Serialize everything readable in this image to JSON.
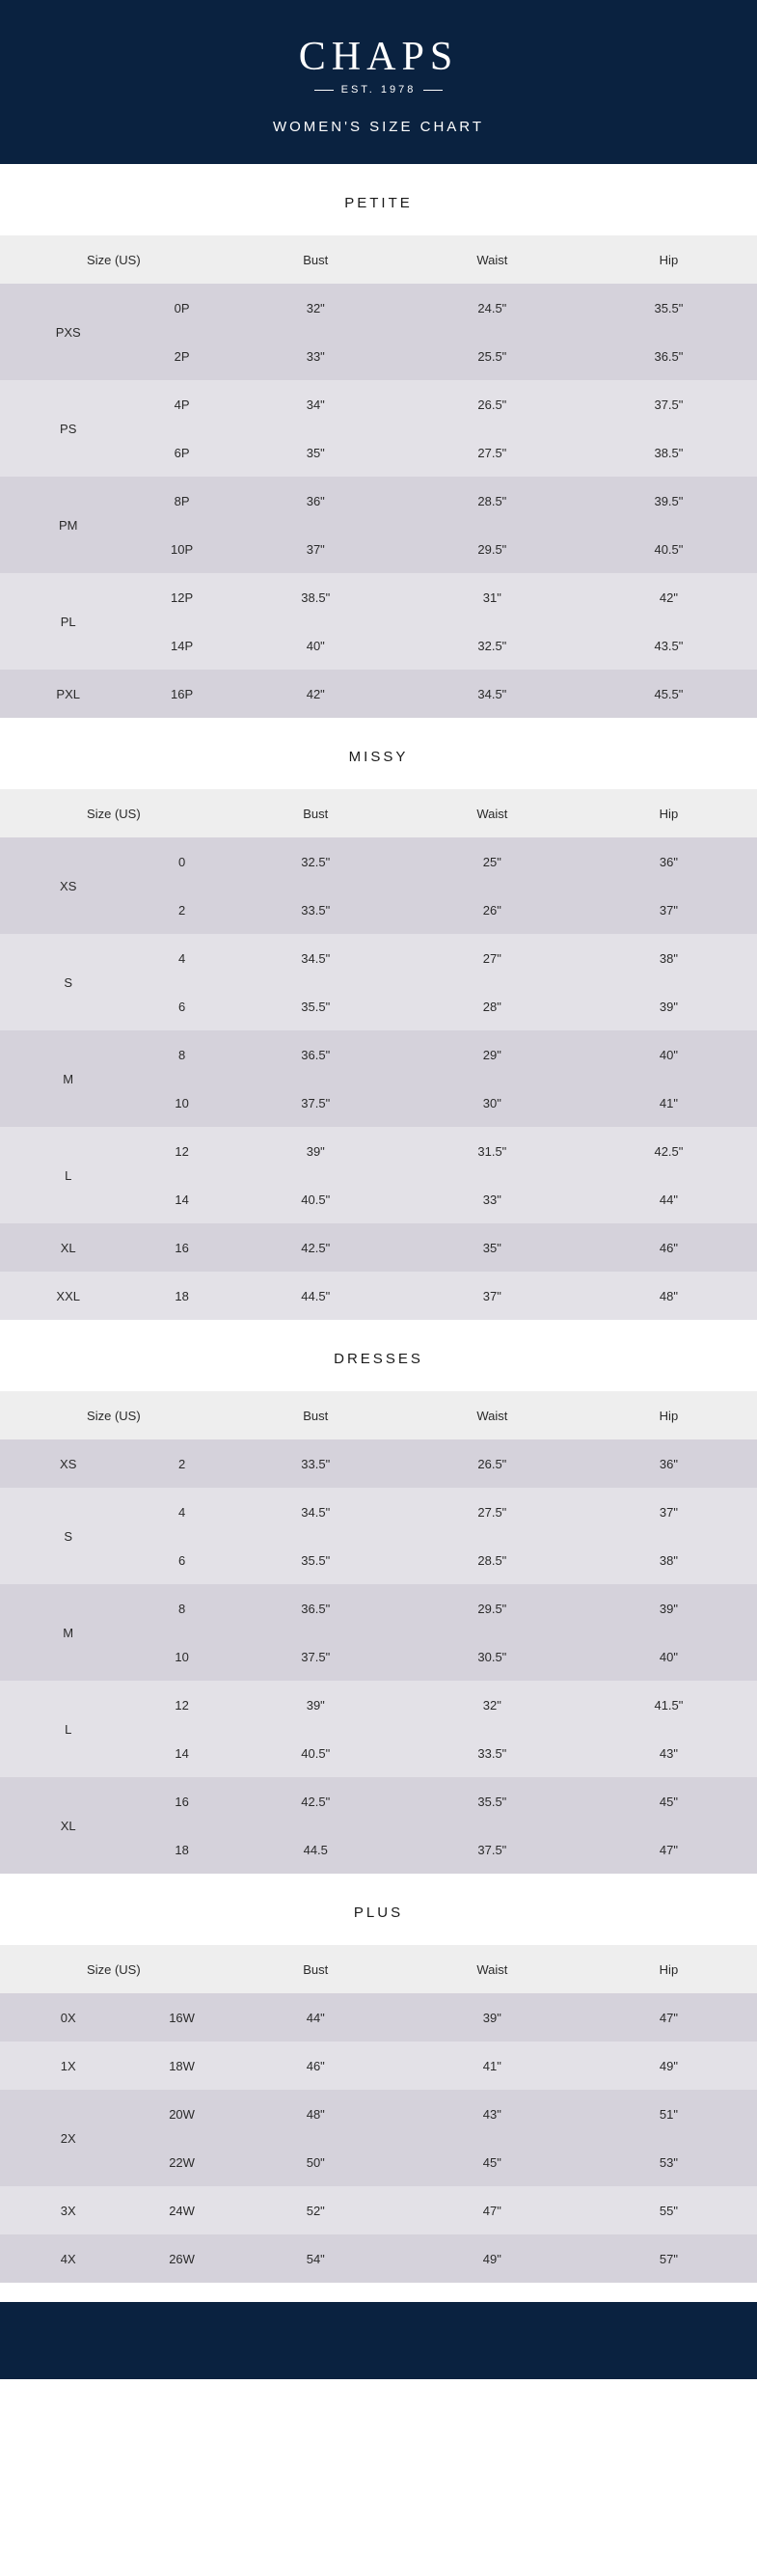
{
  "brand": {
    "name": "CHAPS",
    "est": "EST. 1978",
    "subtitle": "WOMEN'S SIZE CHART"
  },
  "columns": {
    "size": "Size (US)",
    "bust": "Bust",
    "waist": "Waist",
    "hip": "Hip"
  },
  "sections": [
    {
      "title": "PETITE",
      "groups": [
        {
          "label": "PXS",
          "rows": [
            {
              "sub": "0P",
              "bust": "32\"",
              "waist": "24.5\"",
              "hip": "35.5\""
            },
            {
              "sub": "2P",
              "bust": "33\"",
              "waist": "25.5\"",
              "hip": "36.5\""
            }
          ]
        },
        {
          "label": "PS",
          "rows": [
            {
              "sub": "4P",
              "bust": "34\"",
              "waist": "26.5\"",
              "hip": "37.5\""
            },
            {
              "sub": "6P",
              "bust": "35\"",
              "waist": "27.5\"",
              "hip": "38.5\""
            }
          ]
        },
        {
          "label": "PM",
          "rows": [
            {
              "sub": "8P",
              "bust": "36\"",
              "waist": "28.5\"",
              "hip": "39.5\""
            },
            {
              "sub": "10P",
              "bust": "37\"",
              "waist": "29.5\"",
              "hip": "40.5\""
            }
          ]
        },
        {
          "label": "PL",
          "rows": [
            {
              "sub": "12P",
              "bust": "38.5\"",
              "waist": "31\"",
              "hip": "42\""
            },
            {
              "sub": "14P",
              "bust": "40\"",
              "waist": "32.5\"",
              "hip": "43.5\""
            }
          ]
        },
        {
          "label": "PXL",
          "rows": [
            {
              "sub": "16P",
              "bust": "42\"",
              "waist": "34.5\"",
              "hip": "45.5\""
            }
          ]
        }
      ]
    },
    {
      "title": "MISSY",
      "groups": [
        {
          "label": "XS",
          "rows": [
            {
              "sub": "0",
              "bust": "32.5\"",
              "waist": "25\"",
              "hip": "36\""
            },
            {
              "sub": "2",
              "bust": "33.5\"",
              "waist": "26\"",
              "hip": "37\""
            }
          ]
        },
        {
          "label": "S",
          "rows": [
            {
              "sub": "4",
              "bust": "34.5\"",
              "waist": "27\"",
              "hip": "38\""
            },
            {
              "sub": "6",
              "bust": "35.5\"",
              "waist": "28\"",
              "hip": "39\""
            }
          ]
        },
        {
          "label": "M",
          "rows": [
            {
              "sub": "8",
              "bust": "36.5\"",
              "waist": "29\"",
              "hip": "40\""
            },
            {
              "sub": "10",
              "bust": "37.5\"",
              "waist": "30\"",
              "hip": "41\""
            }
          ]
        },
        {
          "label": "L",
          "rows": [
            {
              "sub": "12",
              "bust": "39\"",
              "waist": "31.5\"",
              "hip": "42.5\""
            },
            {
              "sub": "14",
              "bust": "40.5\"",
              "waist": "33\"",
              "hip": "44\""
            }
          ]
        },
        {
          "label": "XL",
          "rows": [
            {
              "sub": "16",
              "bust": "42.5\"",
              "waist": "35\"",
              "hip": "46\""
            }
          ]
        },
        {
          "label": "XXL",
          "rows": [
            {
              "sub": "18",
              "bust": "44.5\"",
              "waist": "37\"",
              "hip": "48\""
            }
          ]
        }
      ]
    },
    {
      "title": "DRESSES",
      "groups": [
        {
          "label": "XS",
          "rows": [
            {
              "sub": "2",
              "bust": "33.5\"",
              "waist": "26.5\"",
              "hip": "36\""
            }
          ]
        },
        {
          "label": "S",
          "rows": [
            {
              "sub": "4",
              "bust": "34.5\"",
              "waist": "27.5\"",
              "hip": "37\""
            },
            {
              "sub": "6",
              "bust": "35.5\"",
              "waist": "28.5\"",
              "hip": "38\""
            }
          ]
        },
        {
          "label": "M",
          "rows": [
            {
              "sub": "8",
              "bust": "36.5\"",
              "waist": "29.5\"",
              "hip": "39\""
            },
            {
              "sub": "10",
              "bust": "37.5\"",
              "waist": "30.5\"",
              "hip": "40\""
            }
          ]
        },
        {
          "label": "L",
          "rows": [
            {
              "sub": "12",
              "bust": "39\"",
              "waist": "32\"",
              "hip": "41.5\""
            },
            {
              "sub": "14",
              "bust": "40.5\"",
              "waist": "33.5\"",
              "hip": "43\""
            }
          ]
        },
        {
          "label": "XL",
          "rows": [
            {
              "sub": "16",
              "bust": "42.5\"",
              "waist": "35.5\"",
              "hip": "45\""
            },
            {
              "sub": "18",
              "bust": "44.5",
              "waist": "37.5\"",
              "hip": "47\""
            }
          ]
        }
      ]
    },
    {
      "title": "PLUS",
      "groups": [
        {
          "label": "0X",
          "rows": [
            {
              "sub": "16W",
              "bust": "44\"",
              "waist": "39\"",
              "hip": "47\""
            }
          ]
        },
        {
          "label": "1X",
          "rows": [
            {
              "sub": "18W",
              "bust": "46\"",
              "waist": "41\"",
              "hip": "49\""
            }
          ]
        },
        {
          "label": "2X",
          "rows": [
            {
              "sub": "20W",
              "bust": "48\"",
              "waist": "43\"",
              "hip": "51\""
            },
            {
              "sub": "22W",
              "bust": "50\"",
              "waist": "45\"",
              "hip": "53\""
            }
          ]
        },
        {
          "label": "3X",
          "rows": [
            {
              "sub": "24W",
              "bust": "52\"",
              "waist": "47\"",
              "hip": "55\""
            }
          ]
        },
        {
          "label": "4X",
          "rows": [
            {
              "sub": "26W",
              "bust": "54\"",
              "waist": "49\"",
              "hip": "57\""
            }
          ]
        }
      ]
    }
  ],
  "colors": {
    "header_bg": "#0a2240",
    "row_header": "#eeeeee",
    "row_a": "#d5d2db",
    "row_b": "#e3e1e7"
  }
}
